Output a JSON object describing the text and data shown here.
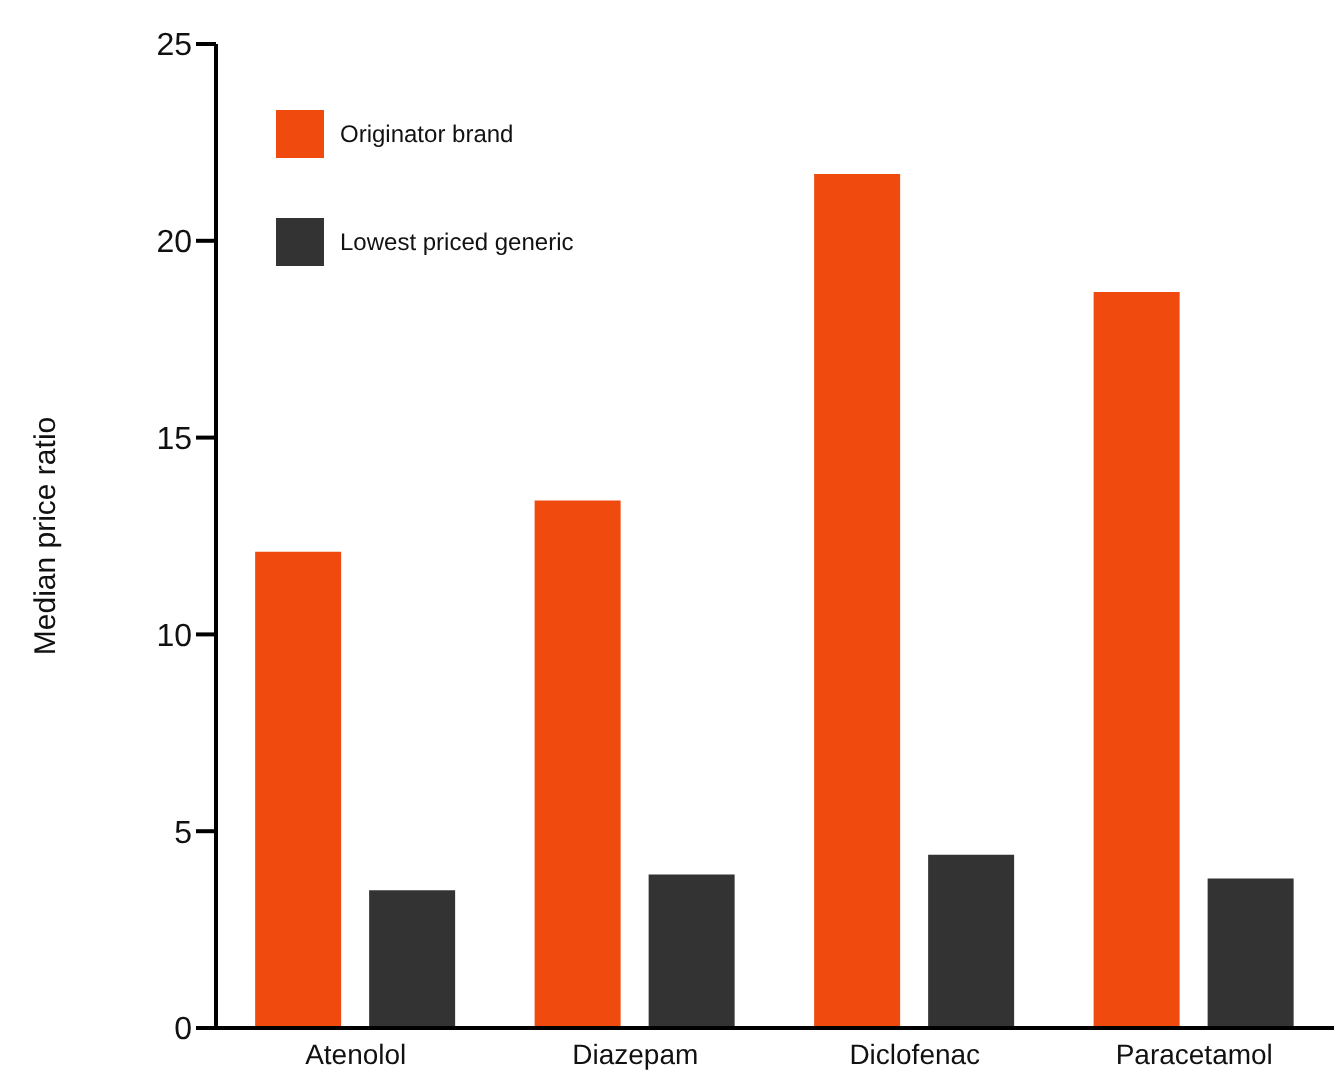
{
  "chart_data": {
    "type": "bar",
    "ylabel": "Median price ratio",
    "categories": [
      "Atenolol",
      "Diazepam",
      "Diclofenac",
      "Paracetamol"
    ],
    "series": [
      {
        "name": "Originator brand",
        "color": "#f04a0f",
        "values": [
          12.1,
          13.4,
          21.7,
          18.7
        ]
      },
      {
        "name": "Lowest priced generic",
        "color": "#333333",
        "values": [
          3.5,
          3.9,
          4.4,
          3.8
        ]
      }
    ],
    "ylim": [
      0,
      25
    ],
    "yticks": [
      0,
      5,
      10,
      15,
      20,
      25
    ],
    "grid": false,
    "legend": "top left"
  }
}
